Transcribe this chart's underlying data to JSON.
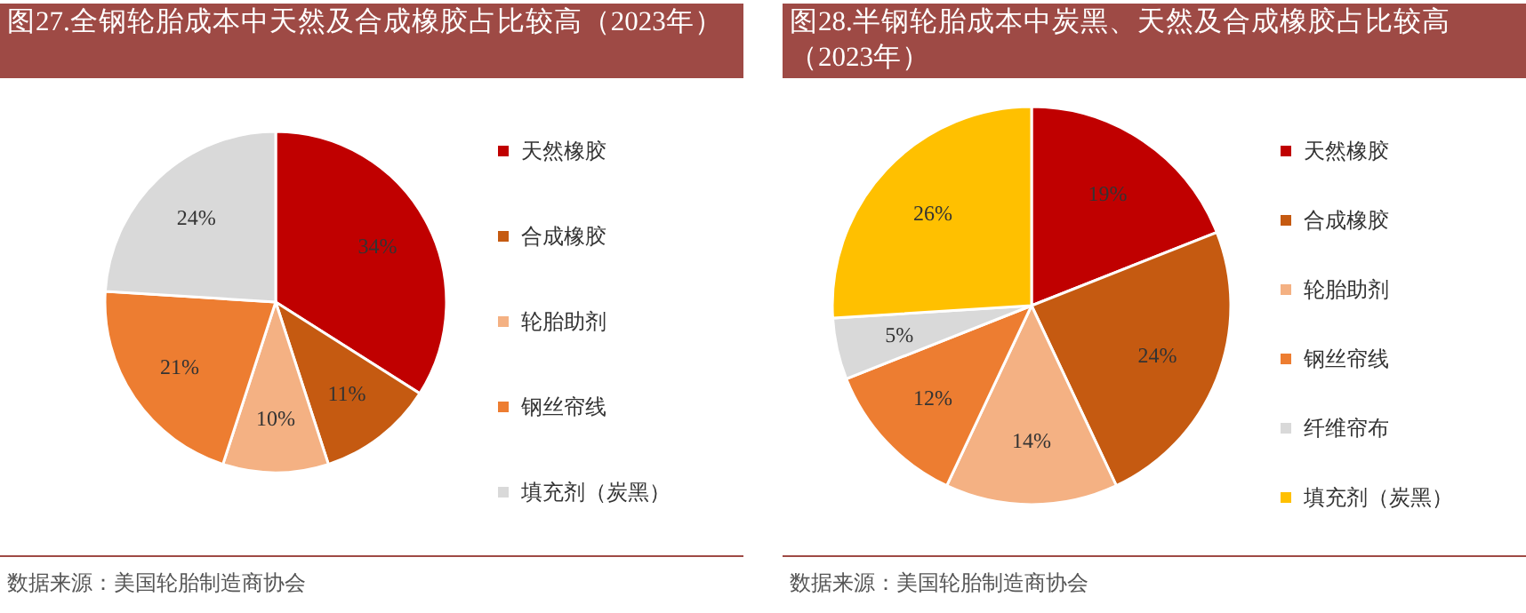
{
  "chart_data": [
    {
      "type": "pie",
      "title": "图27.全钢轮胎成本中天然及合成橡胶占比较高（2023年）",
      "categories": [
        "天然橡胶",
        "合成橡胶",
        "轮胎助剂",
        "钢丝帘线",
        "填充剂（炭黑）"
      ],
      "values": [
        34,
        11,
        10,
        21,
        24
      ],
      "value_labels": [
        "34%",
        "11%",
        "10%",
        "21%",
        "24%"
      ],
      "colors": [
        "#c00000",
        "#c55a11",
        "#f4b183",
        "#ed7d31",
        "#d9d9d9"
      ],
      "legend": "right",
      "annotations": [
        "数据来源：美国轮胎制造商协会"
      ]
    },
    {
      "type": "pie",
      "title": "图28.半钢轮胎成本中炭黑、天然及合成橡胶占比较高（2023年）",
      "categories": [
        "天然橡胶",
        "合成橡胶",
        "轮胎助剂",
        "钢丝帘线",
        "纤维帘布",
        "填充剂（炭黑）"
      ],
      "values": [
        19,
        24,
        14,
        12,
        5,
        26
      ],
      "value_labels": [
        "19%",
        "24%",
        "14%",
        "12%",
        "5%",
        "26%"
      ],
      "colors": [
        "#c00000",
        "#c55a11",
        "#f4b183",
        "#ed7d31",
        "#d9d9d9",
        "#ffc000"
      ],
      "legend": "right",
      "annotations": [
        "数据来源：美国轮胎制造商协会"
      ]
    }
  ]
}
